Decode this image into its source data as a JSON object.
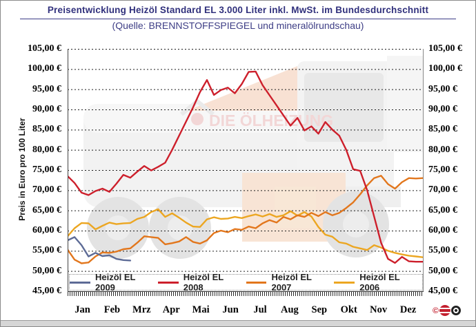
{
  "header": {
    "title": "Preisentwicklung Heizöl Standard EL 3.000 Liter inkl. MwSt. im Bundesdurchschnitt",
    "subtitle": "(Quelle: BRENNSTOFFSPIEGEL und mineralölrundschau)"
  },
  "watermark": {
    "brand": "DIE ÖLHEIZUNG"
  },
  "footer_logo": {
    "copyright": "©"
  },
  "chart_data": {
    "type": "line",
    "title": "Preisentwicklung Heizöl Standard EL 3.000 Liter inkl. MwSt. im Bundesdurchschnitt",
    "xlabel": "",
    "ylabel": "Preis in Euro pro 100 Liter",
    "ylim": [
      45,
      105
    ],
    "y_tick_step": 5,
    "y_tick_labels": [
      "105,00 €",
      "100,00 €",
      "95,00 €",
      "90,00 €",
      "85,00 €",
      "80,00 €",
      "75,00 €",
      "70,00 €",
      "65,00 €",
      "60,00 €",
      "55,00 €",
      "50,00 €",
      "45,00 €"
    ],
    "x_categories": [
      "Jan",
      "Feb",
      "Mrz",
      "Apr",
      "Mai",
      "Jun",
      "Jul",
      "Aug",
      "Sep",
      "Okt",
      "Nov",
      "Dez"
    ],
    "x_resolution": "weekly (52 points per full-year series)",
    "grid": "horizontal dotted lines every 5 €",
    "legend_position": "bottom inside plot",
    "series": [
      {
        "name": "Heizöl EL 2009",
        "color": "#5d6b96",
        "values": [
          57.6,
          58.4,
          56.4,
          53.6,
          54.5,
          53.7,
          53.9,
          53.0,
          52.7,
          52.6
        ]
      },
      {
        "name": "Heizöl EL 2008",
        "color": "#cd1f2b",
        "values": [
          73.5,
          71.8,
          69.4,
          68.8,
          69.8,
          70.4,
          69.6,
          71.6,
          73.8,
          73.1,
          74.6,
          76.0,
          74.9,
          75.8,
          76.8,
          80.0,
          83.5,
          87.0,
          90.5,
          94.3,
          97.3,
          93.6,
          94.8,
          95.4,
          94.0,
          96.3,
          99.3,
          99.4,
          96.0,
          93.5,
          91.0,
          88.5,
          86.0,
          87.9,
          84.8,
          85.8,
          84.0,
          86.9,
          85.0,
          83.5,
          80.0,
          75.2,
          74.8,
          70.0,
          63.5,
          57.0,
          53.0,
          52.0,
          53.5,
          52.4,
          52.3,
          52.3
        ]
      },
      {
        "name": "Heizöl EL 2007",
        "color": "#e2761c",
        "values": [
          55.3,
          52.8,
          51.9,
          52.1,
          53.6,
          54.6,
          54.5,
          54.8,
          55.4,
          55.6,
          57.0,
          58.6,
          58.4,
          58.2,
          56.6,
          56.9,
          57.3,
          58.4,
          57.2,
          56.8,
          57.6,
          59.4,
          60.0,
          59.6,
          60.4,
          60.2,
          61.0,
          60.6,
          61.8,
          62.6,
          62.0,
          63.4,
          62.8,
          63.8,
          63.4,
          64.4,
          63.6,
          64.6,
          63.8,
          64.4,
          65.6,
          67.0,
          69.0,
          71.2,
          73.0,
          73.6,
          71.5,
          70.4,
          72.0,
          73.0,
          72.9,
          73.0
        ]
      },
      {
        "name": "Heizöl EL 2006",
        "color": "#eca621",
        "values": [
          58.6,
          60.6,
          61.9,
          61.8,
          60.3,
          61.2,
          62.0,
          61.6,
          61.8,
          61.9,
          62.9,
          63.4,
          64.6,
          65.3,
          63.4,
          64.3,
          63.2,
          62.0,
          61.0,
          60.9,
          62.8,
          63.3,
          62.9,
          63.0,
          63.4,
          63.1,
          63.6,
          64.0,
          63.5,
          64.1,
          63.4,
          63.8,
          64.8,
          63.7,
          64.6,
          63.5,
          60.9,
          59.0,
          58.5,
          57.1,
          56.8,
          56.0,
          55.6,
          55.2,
          56.4,
          55.8,
          55.0,
          54.5,
          54.1,
          53.8,
          53.6,
          53.4
        ]
      }
    ]
  }
}
